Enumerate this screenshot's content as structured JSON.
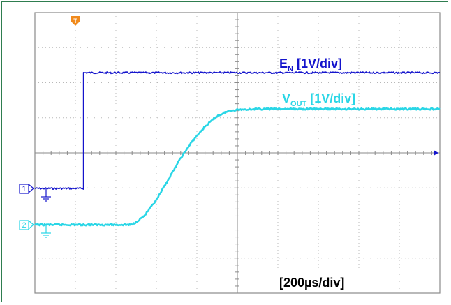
{
  "chart_data": {
    "type": "line",
    "title": "",
    "xlabel": "",
    "ylabel": "",
    "grid": true,
    "x_units": "µs",
    "y_units": "V",
    "xlim": [
      0,
      2000
    ],
    "timebase_label": "[200µs/div]",
    "series": [
      {
        "name": "EN",
        "label_main": "E",
        "label_sub": "N",
        "label_scale": " [1V/div]",
        "channel": "1",
        "color": "#1414cc",
        "x": [
          0,
          240,
          240,
          2000
        ],
        "y": [
          0,
          0,
          3.3,
          3.3
        ]
      },
      {
        "name": "VOUT",
        "label_main": "V",
        "label_sub": "OUT",
        "label_scale": " [1V/div]",
        "channel": "2",
        "color": "#29d6e6",
        "x": [
          0,
          480,
          540,
          600,
          660,
          720,
          780,
          840,
          900,
          960,
          1000,
          1100,
          2000
        ],
        "y": [
          0,
          0,
          0.25,
          0.7,
          1.3,
          1.9,
          2.4,
          2.8,
          3.1,
          3.25,
          3.28,
          3.3,
          3.3
        ]
      }
    ],
    "markers": {
      "trigger": "T",
      "ch1": "1",
      "ch2": "2"
    }
  }
}
